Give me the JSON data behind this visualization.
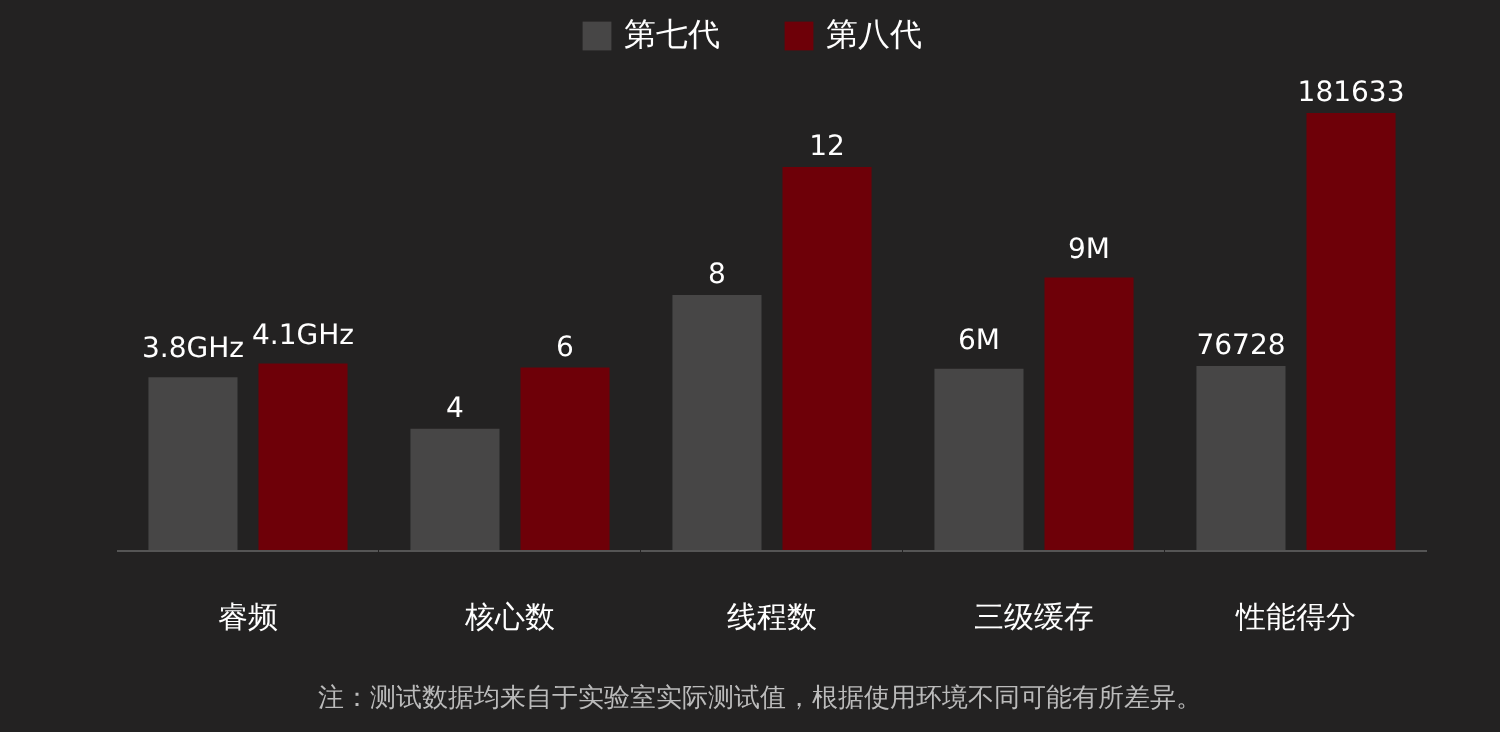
{
  "chart_data": [
    {
      "type": "bar",
      "categories": [
        "睿频"
      ],
      "ylim": [
        0,
        10.5
      ],
      "tick_labels": "x",
      "legend": "top",
      "series": [
        {
          "name": "第七代",
          "color": "#474646",
          "values": [
            3.8
          ],
          "value_labels": [
            "3.8GHz"
          ]
        },
        {
          "name": "第八代",
          "color": "#6e0008",
          "values": [
            4.1
          ],
          "value_labels": [
            "4.1GHz"
          ]
        }
      ],
      "annotations": [
        "注：测试数据均来自于实验室实际测试值，根据使用环境不同可能有所差异。"
      ]
    },
    {
      "type": "bar",
      "categories": [
        "核心数"
      ],
      "ylim": [
        0,
        15.7
      ],
      "tick_labels": "x",
      "data_labels": true,
      "series": [
        {
          "color": "#474646",
          "values": [
            4
          ]
        },
        {
          "color": "#6e0008",
          "values": [
            6
          ]
        }
      ]
    },
    {
      "type": "bar",
      "categories": [
        "线程数"
      ],
      "ylim": [
        0,
        15
      ],
      "tick_labels": "x",
      "data_labels": true,
      "series": [
        {
          "color": "#474646",
          "values": [
            8
          ]
        },
        {
          "color": "#6e0008",
          "values": [
            12
          ]
        }
      ]
    },
    {
      "type": "bar",
      "categories": [
        "三级缓存"
      ],
      "ylim": [
        0,
        15.8
      ],
      "tick_labels": "x",
      "series": [
        {
          "color": "#474646",
          "values": [
            6
          ],
          "value_labels": [
            "6M"
          ]
        },
        {
          "color": "#6e0008",
          "values": [
            9
          ],
          "value_labels": [
            "9M"
          ]
        }
      ]
    },
    {
      "type": "bar",
      "categories": [
        "性能得分"
      ],
      "ylim": [
        0,
        199000
      ],
      "tick_labels": "x",
      "data_labels": true,
      "series": [
        {
          "color": "#474646",
          "values": [
            76728
          ]
        },
        {
          "color": "#6e0008",
          "values": [
            181633
          ]
        }
      ]
    }
  ]
}
